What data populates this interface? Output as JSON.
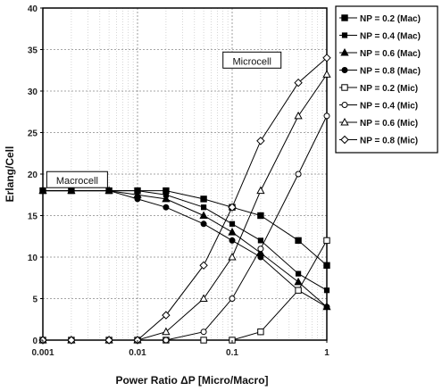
{
  "chart_data": {
    "type": "line",
    "xlabel": "Power Ratio ΔP [Micro/Macro]",
    "ylabel": "Erlang/Cell",
    "xscale": "log",
    "xlim": [
      0.001,
      1
    ],
    "ylim": [
      0,
      40
    ],
    "grid": true,
    "legend_position": "right",
    "x_tick_labels": [
      "0.001",
      "0.01",
      "0.1",
      "1"
    ],
    "x_tick_values": [
      0.001,
      0.01,
      0.1,
      1
    ],
    "y_tick_values": [
      0,
      5,
      10,
      15,
      20,
      25,
      30,
      35,
      40
    ],
    "y_tick_labels": [
      "0",
      "5",
      "10",
      "15",
      "20",
      "25",
      "30",
      "35",
      "40"
    ],
    "x": [
      0.001,
      0.002,
      0.005,
      0.01,
      0.02,
      0.05,
      0.1,
      0.2,
      0.5,
      1
    ],
    "annotations": [
      {
        "text": "Microcell",
        "x": 0.08,
        "y": 33.3
      },
      {
        "text": "Macrocell",
        "x": 0.0011,
        "y": 18.9
      }
    ],
    "series": [
      {
        "name": "NP = 0.2 (Mac)",
        "marker": "square-filled",
        "values": [
          18,
          18,
          18,
          18,
          18,
          17,
          16,
          15,
          12,
          9
        ]
      },
      {
        "name": "NP = 0.4 (Mac)",
        "marker": "square-filled-small",
        "values": [
          18,
          18,
          18,
          18,
          17.5,
          16,
          14,
          12,
          8,
          6
        ]
      },
      {
        "name": "NP = 0.6 (Mac)",
        "marker": "triangle-filled",
        "values": [
          18,
          18,
          18,
          17.5,
          17,
          15,
          13,
          10.5,
          7,
          4
        ]
      },
      {
        "name": "NP = 0.8 (Mac)",
        "marker": "circle-filled",
        "values": [
          18,
          18,
          18,
          17,
          16,
          14,
          12,
          10,
          6,
          4
        ]
      },
      {
        "name": "NP = 0.2 (Mic)",
        "marker": "square-open",
        "values": [
          0,
          0,
          0,
          0,
          0,
          0,
          0,
          1,
          6,
          12
        ]
      },
      {
        "name": "NP = 0.4 (Mic)",
        "marker": "circle-open",
        "values": [
          0,
          0,
          0,
          0,
          0,
          1,
          5,
          11,
          20,
          27
        ]
      },
      {
        "name": "NP = 0.6 (Mic)",
        "marker": "triangle-open",
        "values": [
          0,
          0,
          0,
          0,
          1,
          5,
          10,
          18,
          27,
          32
        ]
      },
      {
        "name": "NP = 0.8 (Mic)",
        "marker": "diamond-open",
        "values": [
          0,
          0,
          0,
          0,
          3,
          9,
          16,
          24,
          31,
          34
        ]
      }
    ]
  }
}
